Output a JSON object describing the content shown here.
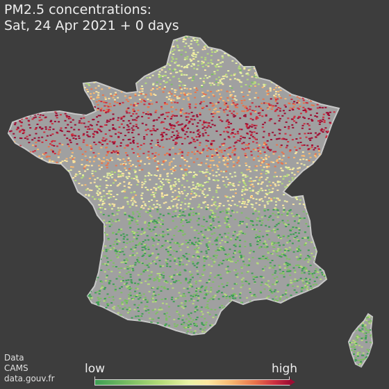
{
  "title": {
    "line1": "PM2.5 concentrations:",
    "line2": "Sat, 24 Apr 2021 + 0 days"
  },
  "credits": [
    "Data",
    "CAMS",
    "data.gouv.fr"
  ],
  "legend": {
    "low_label": "low",
    "high_label": "high"
  },
  "colors": {
    "background": "#3d3d3d",
    "land_base": "#a0a0a0",
    "coast_stroke": "#c8c8c8",
    "scale": [
      "#3e9e54",
      "#7dbf64",
      "#b5db79",
      "#e8f2a4",
      "#fde7a0",
      "#f8b870",
      "#e9744b",
      "#cc3040",
      "#9e0d33"
    ]
  }
}
